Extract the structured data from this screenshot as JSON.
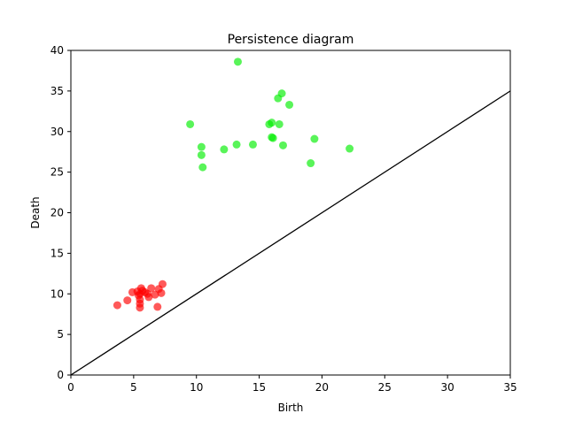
{
  "chart_data": {
    "type": "scatter",
    "title": "Persistence diagram",
    "xlabel": "Birth",
    "ylabel": "Death",
    "xlim": [
      0,
      35
    ],
    "ylim": [
      0,
      40
    ],
    "xticks": [
      0,
      5,
      10,
      15,
      20,
      25,
      30,
      35
    ],
    "yticks": [
      0,
      5,
      10,
      15,
      20,
      25,
      30,
      35,
      40
    ],
    "grid": false,
    "diagonal": {
      "x": [
        0,
        35
      ],
      "y": [
        0,
        35
      ],
      "color": "#000000"
    },
    "series": [
      {
        "color": "#ff0000",
        "x": [
          3.7,
          4.5,
          4.9,
          5.3,
          5.4,
          5.5,
          5.5,
          5.5,
          5.5,
          5.6,
          5.7,
          5.9,
          6.1,
          6.2,
          6.4,
          6.7,
          6.9,
          7.0,
          7.2,
          7.3
        ],
        "y": [
          8.6,
          9.2,
          10.2,
          10.3,
          9.8,
          9.3,
          8.8,
          8.3,
          10.0,
          10.7,
          10.4,
          10.2,
          10.0,
          9.6,
          10.7,
          9.9,
          8.4,
          10.6,
          10.1,
          11.2
        ]
      },
      {
        "color": "#00ee00",
        "x": [
          9.5,
          10.4,
          10.4,
          10.5,
          12.2,
          13.2,
          13.3,
          14.5,
          15.8,
          16.0,
          16.0,
          16.1,
          16.5,
          16.6,
          16.8,
          16.9,
          17.4,
          19.1,
          19.4,
          22.2
        ],
        "y": [
          30.9,
          28.1,
          27.1,
          25.6,
          27.8,
          28.4,
          38.6,
          28.4,
          30.9,
          31.1,
          29.3,
          29.2,
          34.1,
          30.9,
          34.7,
          28.3,
          33.3,
          26.1,
          29.1,
          27.9
        ]
      }
    ]
  }
}
